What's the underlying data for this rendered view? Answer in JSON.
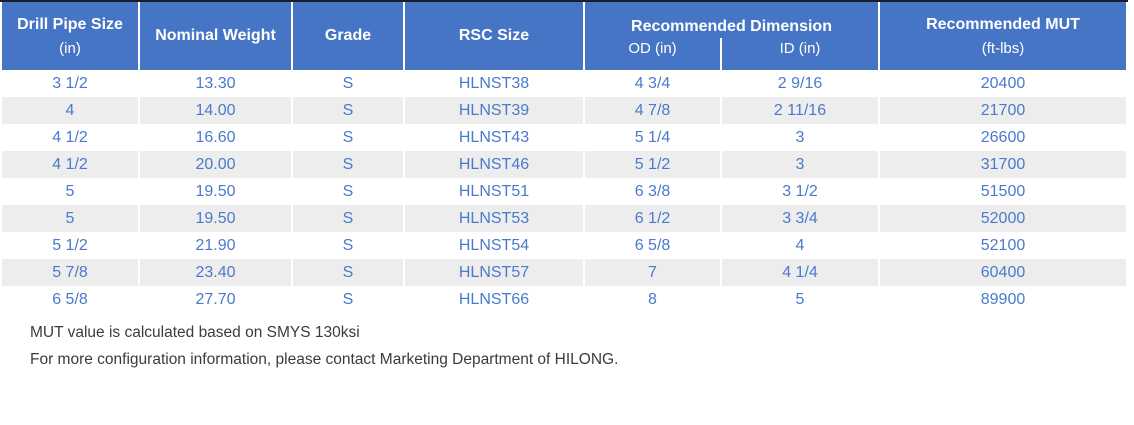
{
  "table": {
    "header": {
      "drill_pipe_size_line1": "Drill Pipe Size",
      "drill_pipe_size_line2": "(in)",
      "nominal_weight": "Nominal Weight",
      "grade": "Grade",
      "rsc_size": "RSC Size",
      "recommended_dimension": "Recommended Dimension",
      "od": "OD (in)",
      "id": "ID (in)",
      "recommended_mut_line1": "Recommended MUT",
      "recommended_mut_line2": "(ft-lbs)"
    },
    "rows": [
      [
        "3 1/2",
        "13.30",
        "S",
        "HLNST38",
        "4 3/4",
        "2 9/16",
        "20400"
      ],
      [
        "4",
        "14.00",
        "S",
        "HLNST39",
        "4 7/8",
        "2 11/16",
        "21700"
      ],
      [
        "4 1/2",
        "16.60",
        "S",
        "HLNST43",
        "5 1/4",
        "3",
        "26600"
      ],
      [
        "4 1/2",
        "20.00",
        "S",
        "HLNST46",
        "5 1/2",
        "3",
        "31700"
      ],
      [
        "5",
        "19.50",
        "S",
        "HLNST51",
        "6 3/8",
        "3 1/2",
        "51500"
      ],
      [
        "5",
        "19.50",
        "S",
        "HLNST53",
        "6 1/2",
        "3 3/4",
        "52000"
      ],
      [
        "5 1/2",
        "21.90",
        "S",
        "HLNST54",
        "6 5/8",
        "4",
        "52100"
      ],
      [
        "5 7/8",
        "23.40",
        "S",
        "HLNST57",
        "7",
        "4 1/4",
        "60400"
      ],
      [
        "6 5/8",
        "27.70",
        "S",
        "HLNST66",
        "8",
        "5",
        "89900"
      ]
    ]
  },
  "notes": {
    "line1": "MUT value is calculated based on SMYS 130ksi",
    "line2": "For more configuration information, please contact Marketing Department of HILONG."
  },
  "colors": {
    "header_bg": "#4775c5",
    "data_text": "#4a7acc",
    "row_stripe": "#ededed",
    "top_border": "#1a1e26",
    "note_text": "#3b3b3b"
  }
}
